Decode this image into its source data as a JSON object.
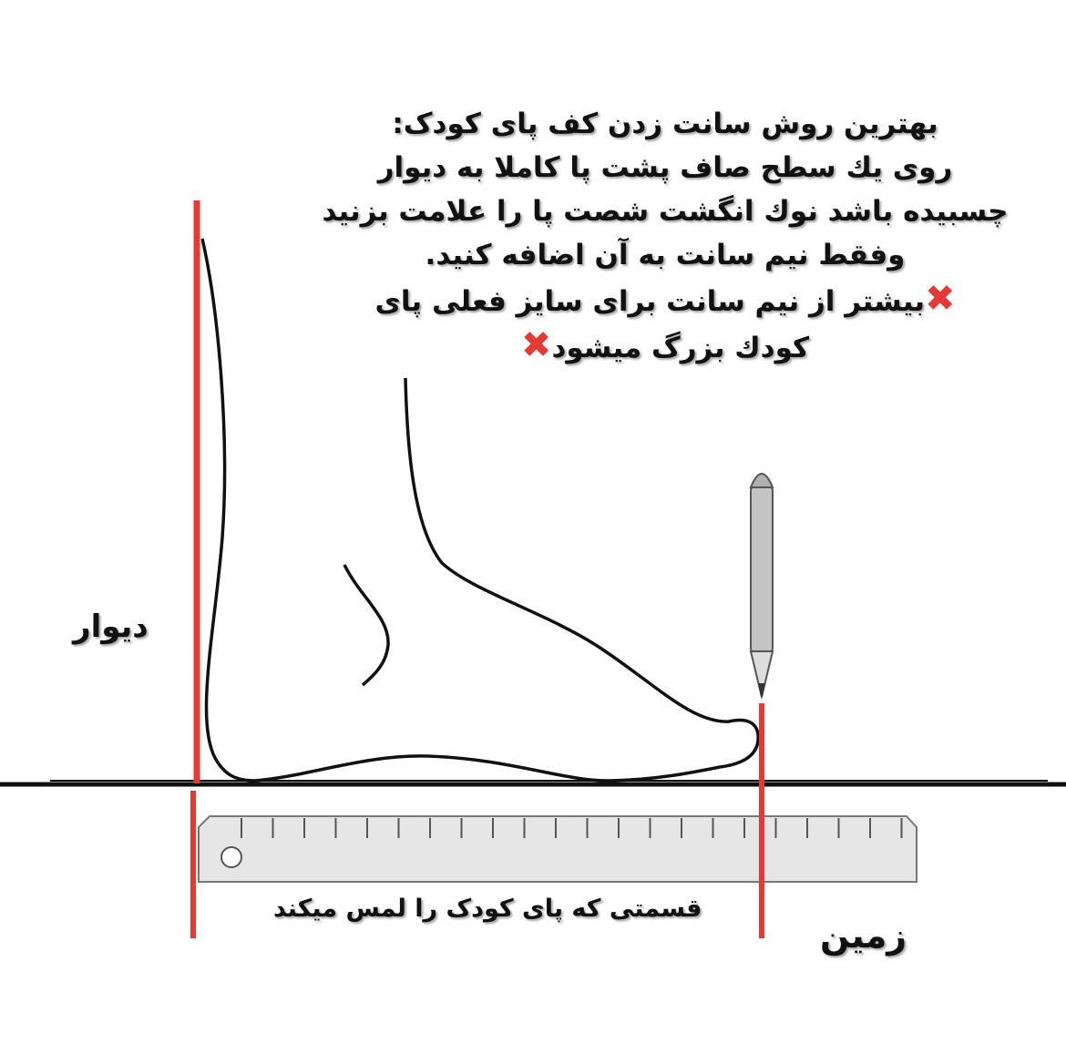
{
  "instructions": {
    "lines": [
      "بهترین روش سانت زدن کف پای کودک:",
      "روی یك سطح صاف پشت پا كاملا به دیوار",
      "چسبیده باشد نوك انگشت شصت پا را علامت بزنید",
      "وفقط نیم سانت به آن اضافه کنید.",
      "بیشتر از نیم سانت برای سایز فعلی پای",
      "کودك بزرگ میشود"
    ],
    "warning_icon": "red-x-mark-icon"
  },
  "labels": {
    "wall": "دیوار",
    "ground": "زمین",
    "contact": "قسمتی که پای کودک را لمس میکند"
  },
  "colors": {
    "marker_lines": "#e53935",
    "ruler": "#e6e6e6",
    "pencil": "#bdbdbd"
  }
}
